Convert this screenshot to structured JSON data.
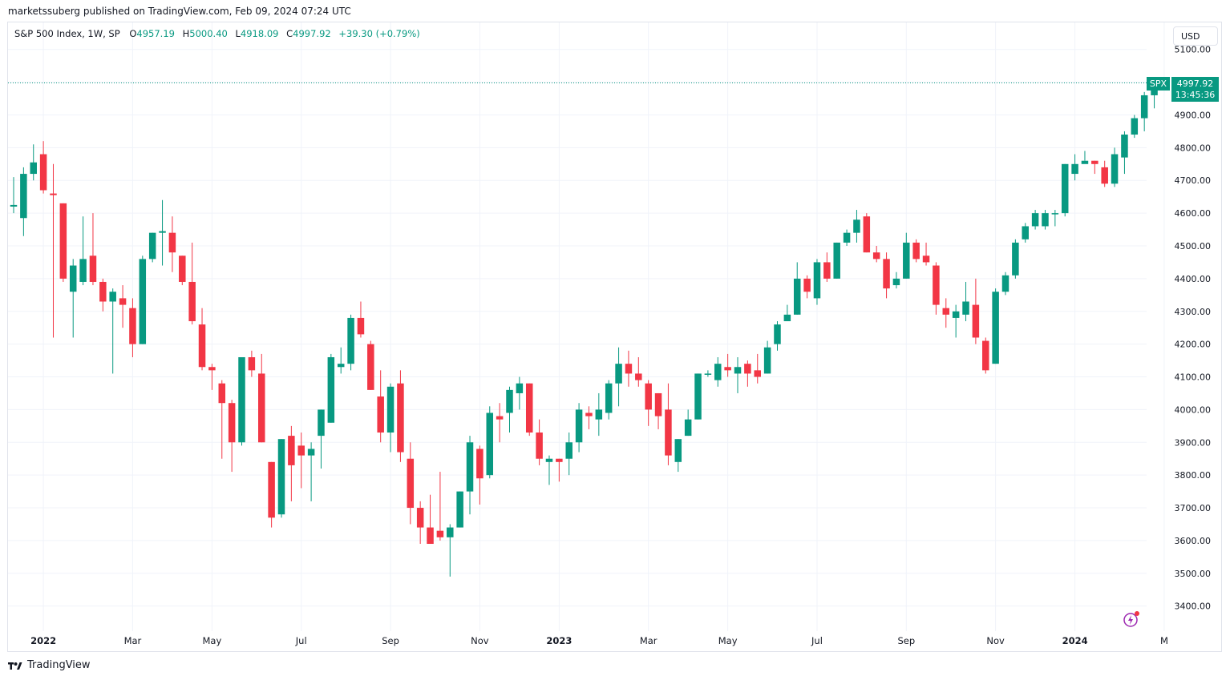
{
  "header": {
    "published": "marketssuberg published on TradingView.com, Feb 09, 2024 07:24 UTC"
  },
  "legend": {
    "symbol": "S&P 500 Index, 1W, SP",
    "open_label": "O",
    "open": "4957.19",
    "high_label": "H",
    "high": "5000.40",
    "low_label": "L",
    "low": "4918.09",
    "close_label": "C",
    "close": "4997.92",
    "change": "+39.30 (+0.79%)"
  },
  "currency": "USD",
  "price_tag": {
    "ticker": "SPX",
    "price": "4997.92",
    "countdown": "13:45:36"
  },
  "footer": {
    "brand": "TradingView"
  },
  "colors": {
    "up": "#089981",
    "down": "#f23645",
    "grid": "#f0f3fa",
    "text": "#131722"
  },
  "chart_data": {
    "type": "candlestick",
    "interval": "1W",
    "ylim": [
      3350,
      5130
    ],
    "y_ticks": [
      3400,
      3500,
      3600,
      3700,
      3800,
      3900,
      4000,
      4100,
      4200,
      4300,
      4400,
      4500,
      4600,
      4700,
      4800,
      4900,
      5000,
      5100
    ],
    "x_tick_labels": [
      {
        "label": "2022",
        "index": 3,
        "bold": true
      },
      {
        "label": "Mar",
        "index": 12
      },
      {
        "label": "May",
        "index": 20
      },
      {
        "label": "Jul",
        "index": 29
      },
      {
        "label": "Sep",
        "index": 38
      },
      {
        "label": "Nov",
        "index": 47
      },
      {
        "label": "2023",
        "index": 55,
        "bold": true
      },
      {
        "label": "Mar",
        "index": 64
      },
      {
        "label": "May",
        "index": 72
      },
      {
        "label": "Jul",
        "index": 81
      },
      {
        "label": "Sep",
        "index": 90
      },
      {
        "label": "Nov",
        "index": 99
      },
      {
        "label": "2024",
        "index": 107,
        "bold": true
      },
      {
        "label": "M",
        "index": 116
      }
    ],
    "candles": [
      [
        4620,
        4625,
        4600,
        4710
      ],
      [
        4585,
        4720,
        4530,
        4740
      ],
      [
        4720,
        4755,
        4700,
        4810
      ],
      [
        4780,
        4670,
        4660,
        4820
      ],
      [
        4660,
        4655,
        4220,
        4750
      ],
      [
        4630,
        4400,
        4390,
        4630
      ],
      [
        4360,
        4440,
        4220,
        4460
      ],
      [
        4390,
        4460,
        4380,
        4590
      ],
      [
        4470,
        4390,
        4380,
        4600
      ],
      [
        4390,
        4330,
        4300,
        4400
      ],
      [
        4330,
        4360,
        4110,
        4370
      ],
      [
        4340,
        4320,
        4250,
        4380
      ],
      [
        4310,
        4200,
        4160,
        4340
      ],
      [
        4200,
        4460,
        4200,
        4470
      ],
      [
        4460,
        4540,
        4450,
        4540
      ],
      [
        4540,
        4545,
        4440,
        4640
      ],
      [
        4540,
        4480,
        4420,
        4590
      ],
      [
        4470,
        4390,
        4380,
        4470
      ],
      [
        4390,
        4270,
        4260,
        4510
      ],
      [
        4260,
        4130,
        4120,
        4310
      ],
      [
        4130,
        4120,
        4060,
        4140
      ],
      [
        4080,
        4020,
        3850,
        4090
      ],
      [
        4020,
        3900,
        3810,
        4030
      ],
      [
        3900,
        4160,
        3890,
        4160
      ],
      [
        4160,
        4120,
        4100,
        4180
      ],
      [
        4110,
        3900,
        3900,
        4170
      ],
      [
        3840,
        3670,
        3640,
        3840
      ],
      [
        3680,
        3910,
        3670,
        3910
      ],
      [
        3920,
        3830,
        3720,
        3950
      ],
      [
        3890,
        3860,
        3760,
        3930
      ],
      [
        3860,
        3880,
        3720,
        3900
      ],
      [
        3920,
        4000,
        3820,
        4000
      ],
      [
        3960,
        4160,
        3960,
        4170
      ],
      [
        4130,
        4140,
        4110,
        4190
      ],
      [
        4140,
        4280,
        4120,
        4290
      ],
      [
        4280,
        4230,
        4220,
        4330
      ],
      [
        4200,
        4060,
        4060,
        4210
      ],
      [
        4040,
        3930,
        3900,
        4120
      ],
      [
        3930,
        4070,
        3870,
        4080
      ],
      [
        4080,
        3870,
        3840,
        4120
      ],
      [
        3850,
        3700,
        3650,
        3900
      ],
      [
        3700,
        3640,
        3590,
        3720
      ],
      [
        3640,
        3590,
        3590,
        3740
      ],
      [
        3630,
        3610,
        3600,
        3810
      ],
      [
        3610,
        3640,
        3490,
        3650
      ],
      [
        3640,
        3750,
        3640,
        3750
      ],
      [
        3750,
        3900,
        3680,
        3920
      ],
      [
        3880,
        3790,
        3710,
        3890
      ],
      [
        3800,
        3990,
        3790,
        4010
      ],
      [
        3980,
        3970,
        3900,
        4020
      ],
      [
        3990,
        4060,
        3930,
        4070
      ],
      [
        4050,
        4080,
        4000,
        4100
      ],
      [
        4080,
        3930,
        3920,
        4080
      ],
      [
        3930,
        3850,
        3830,
        3970
      ],
      [
        3840,
        3850,
        3770,
        3860
      ],
      [
        3850,
        3840,
        3780,
        3850
      ],
      [
        3850,
        3900,
        3800,
        3930
      ],
      [
        3900,
        4000,
        3870,
        4020
      ],
      [
        3990,
        3980,
        3940,
        4010
      ],
      [
        3970,
        4000,
        3920,
        4050
      ],
      [
        3990,
        4080,
        3970,
        4090
      ],
      [
        4080,
        4140,
        4010,
        4190
      ],
      [
        4140,
        4110,
        4070,
        4180
      ],
      [
        4110,
        4090,
        4070,
        4160
      ],
      [
        4080,
        4000,
        3950,
        4090
      ],
      [
        4050,
        3980,
        3940,
        4050
      ],
      [
        4000,
        3860,
        3830,
        4080
      ],
      [
        3840,
        3910,
        3810,
        3910
      ],
      [
        3920,
        3970,
        3920,
        4000
      ],
      [
        3970,
        4110,
        3970,
        4110
      ],
      [
        4110,
        4110,
        4100,
        4120
      ],
      [
        4090,
        4140,
        4070,
        4160
      ],
      [
        4130,
        4120,
        4100,
        4170
      ],
      [
        4110,
        4130,
        4050,
        4160
      ],
      [
        4140,
        4110,
        4070,
        4150
      ],
      [
        4120,
        4100,
        4080,
        4170
      ],
      [
        4110,
        4190,
        4110,
        4210
      ],
      [
        4200,
        4260,
        4180,
        4270
      ],
      [
        4270,
        4290,
        4270,
        4320
      ],
      [
        4290,
        4400,
        4290,
        4450
      ],
      [
        4400,
        4360,
        4340,
        4410
      ],
      [
        4340,
        4450,
        4320,
        4460
      ],
      [
        4450,
        4400,
        4390,
        4480
      ],
      [
        4400,
        4510,
        4400,
        4510
      ],
      [
        4510,
        4540,
        4500,
        4550
      ],
      [
        4540,
        4580,
        4510,
        4610
      ],
      [
        4590,
        4480,
        4480,
        4600
      ],
      [
        4480,
        4460,
        4450,
        4500
      ],
      [
        4460,
        4370,
        4340,
        4480
      ],
      [
        4380,
        4400,
        4370,
        4420
      ],
      [
        4400,
        4510,
        4400,
        4540
      ],
      [
        4510,
        4460,
        4450,
        4520
      ],
      [
        4470,
        4450,
        4440,
        4510
      ],
      [
        4440,
        4320,
        4290,
        4450
      ],
      [
        4310,
        4290,
        4250,
        4340
      ],
      [
        4280,
        4300,
        4220,
        4320
      ],
      [
        4290,
        4330,
        4270,
        4390
      ],
      [
        4320,
        4220,
        4200,
        4400
      ],
      [
        4210,
        4120,
        4110,
        4220
      ],
      [
        4140,
        4360,
        4140,
        4370
      ],
      [
        4360,
        4410,
        4350,
        4420
      ],
      [
        4410,
        4510,
        4400,
        4520
      ],
      [
        4520,
        4560,
        4510,
        4570
      ],
      [
        4560,
        4600,
        4550,
        4610
      ],
      [
        4560,
        4600,
        4550,
        4610
      ],
      [
        4600,
        4600,
        4560,
        4610
      ],
      [
        4600,
        4750,
        4590,
        4750
      ],
      [
        4720,
        4750,
        4700,
        4780
      ],
      [
        4750,
        4760,
        4760,
        4790
      ],
      [
        4760,
        4750,
        4720,
        4760
      ],
      [
        4740,
        4690,
        4680,
        4760
      ],
      [
        4690,
        4780,
        4680,
        4800
      ],
      [
        4770,
        4840,
        4720,
        4850
      ],
      [
        4840,
        4890,
        4830,
        4900
      ],
      [
        4890,
        4960,
        4850,
        4970
      ],
      [
        4960,
        5000,
        4920,
        5000
      ]
    ],
    "last_price": 4997.92
  }
}
